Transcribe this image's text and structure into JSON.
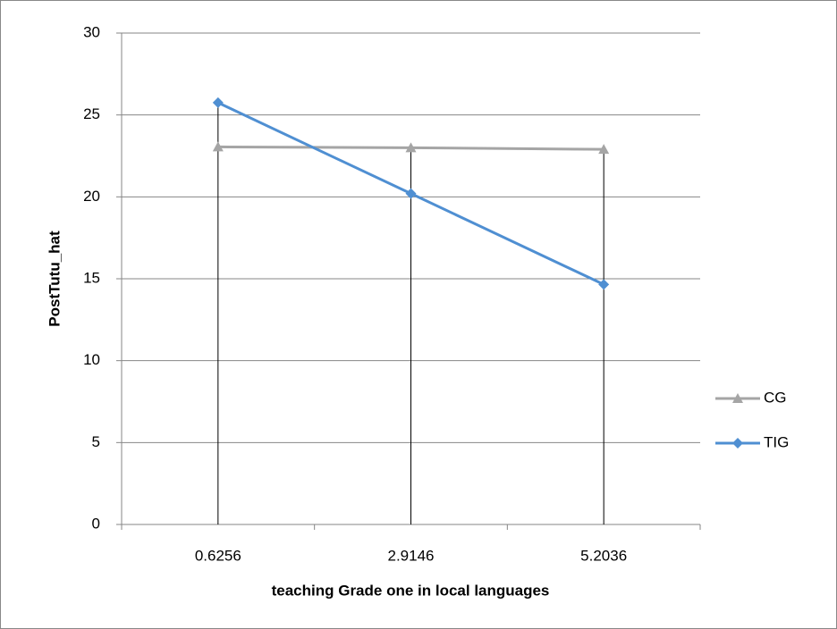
{
  "chart_data": {
    "type": "line",
    "x_label": "teaching Grade one in local languages",
    "y_label": "PostTutu_hat",
    "categories": [
      "0.6256",
      "2.9146",
      "5.2036"
    ],
    "series": [
      {
        "name": "CG",
        "color": "#a5a5a5",
        "marker": "triangle",
        "values": [
          23.05,
          23.0,
          22.9
        ]
      },
      {
        "name": "TIG",
        "color": "#4f8fd2",
        "marker": "diamond",
        "values": [
          25.75,
          20.2,
          14.65
        ]
      }
    ],
    "ylim": [
      0,
      30
    ],
    "yticks": [
      0,
      5,
      10,
      15,
      20,
      25,
      30
    ],
    "grid": true,
    "drop_lines": true,
    "legend": "right"
  }
}
